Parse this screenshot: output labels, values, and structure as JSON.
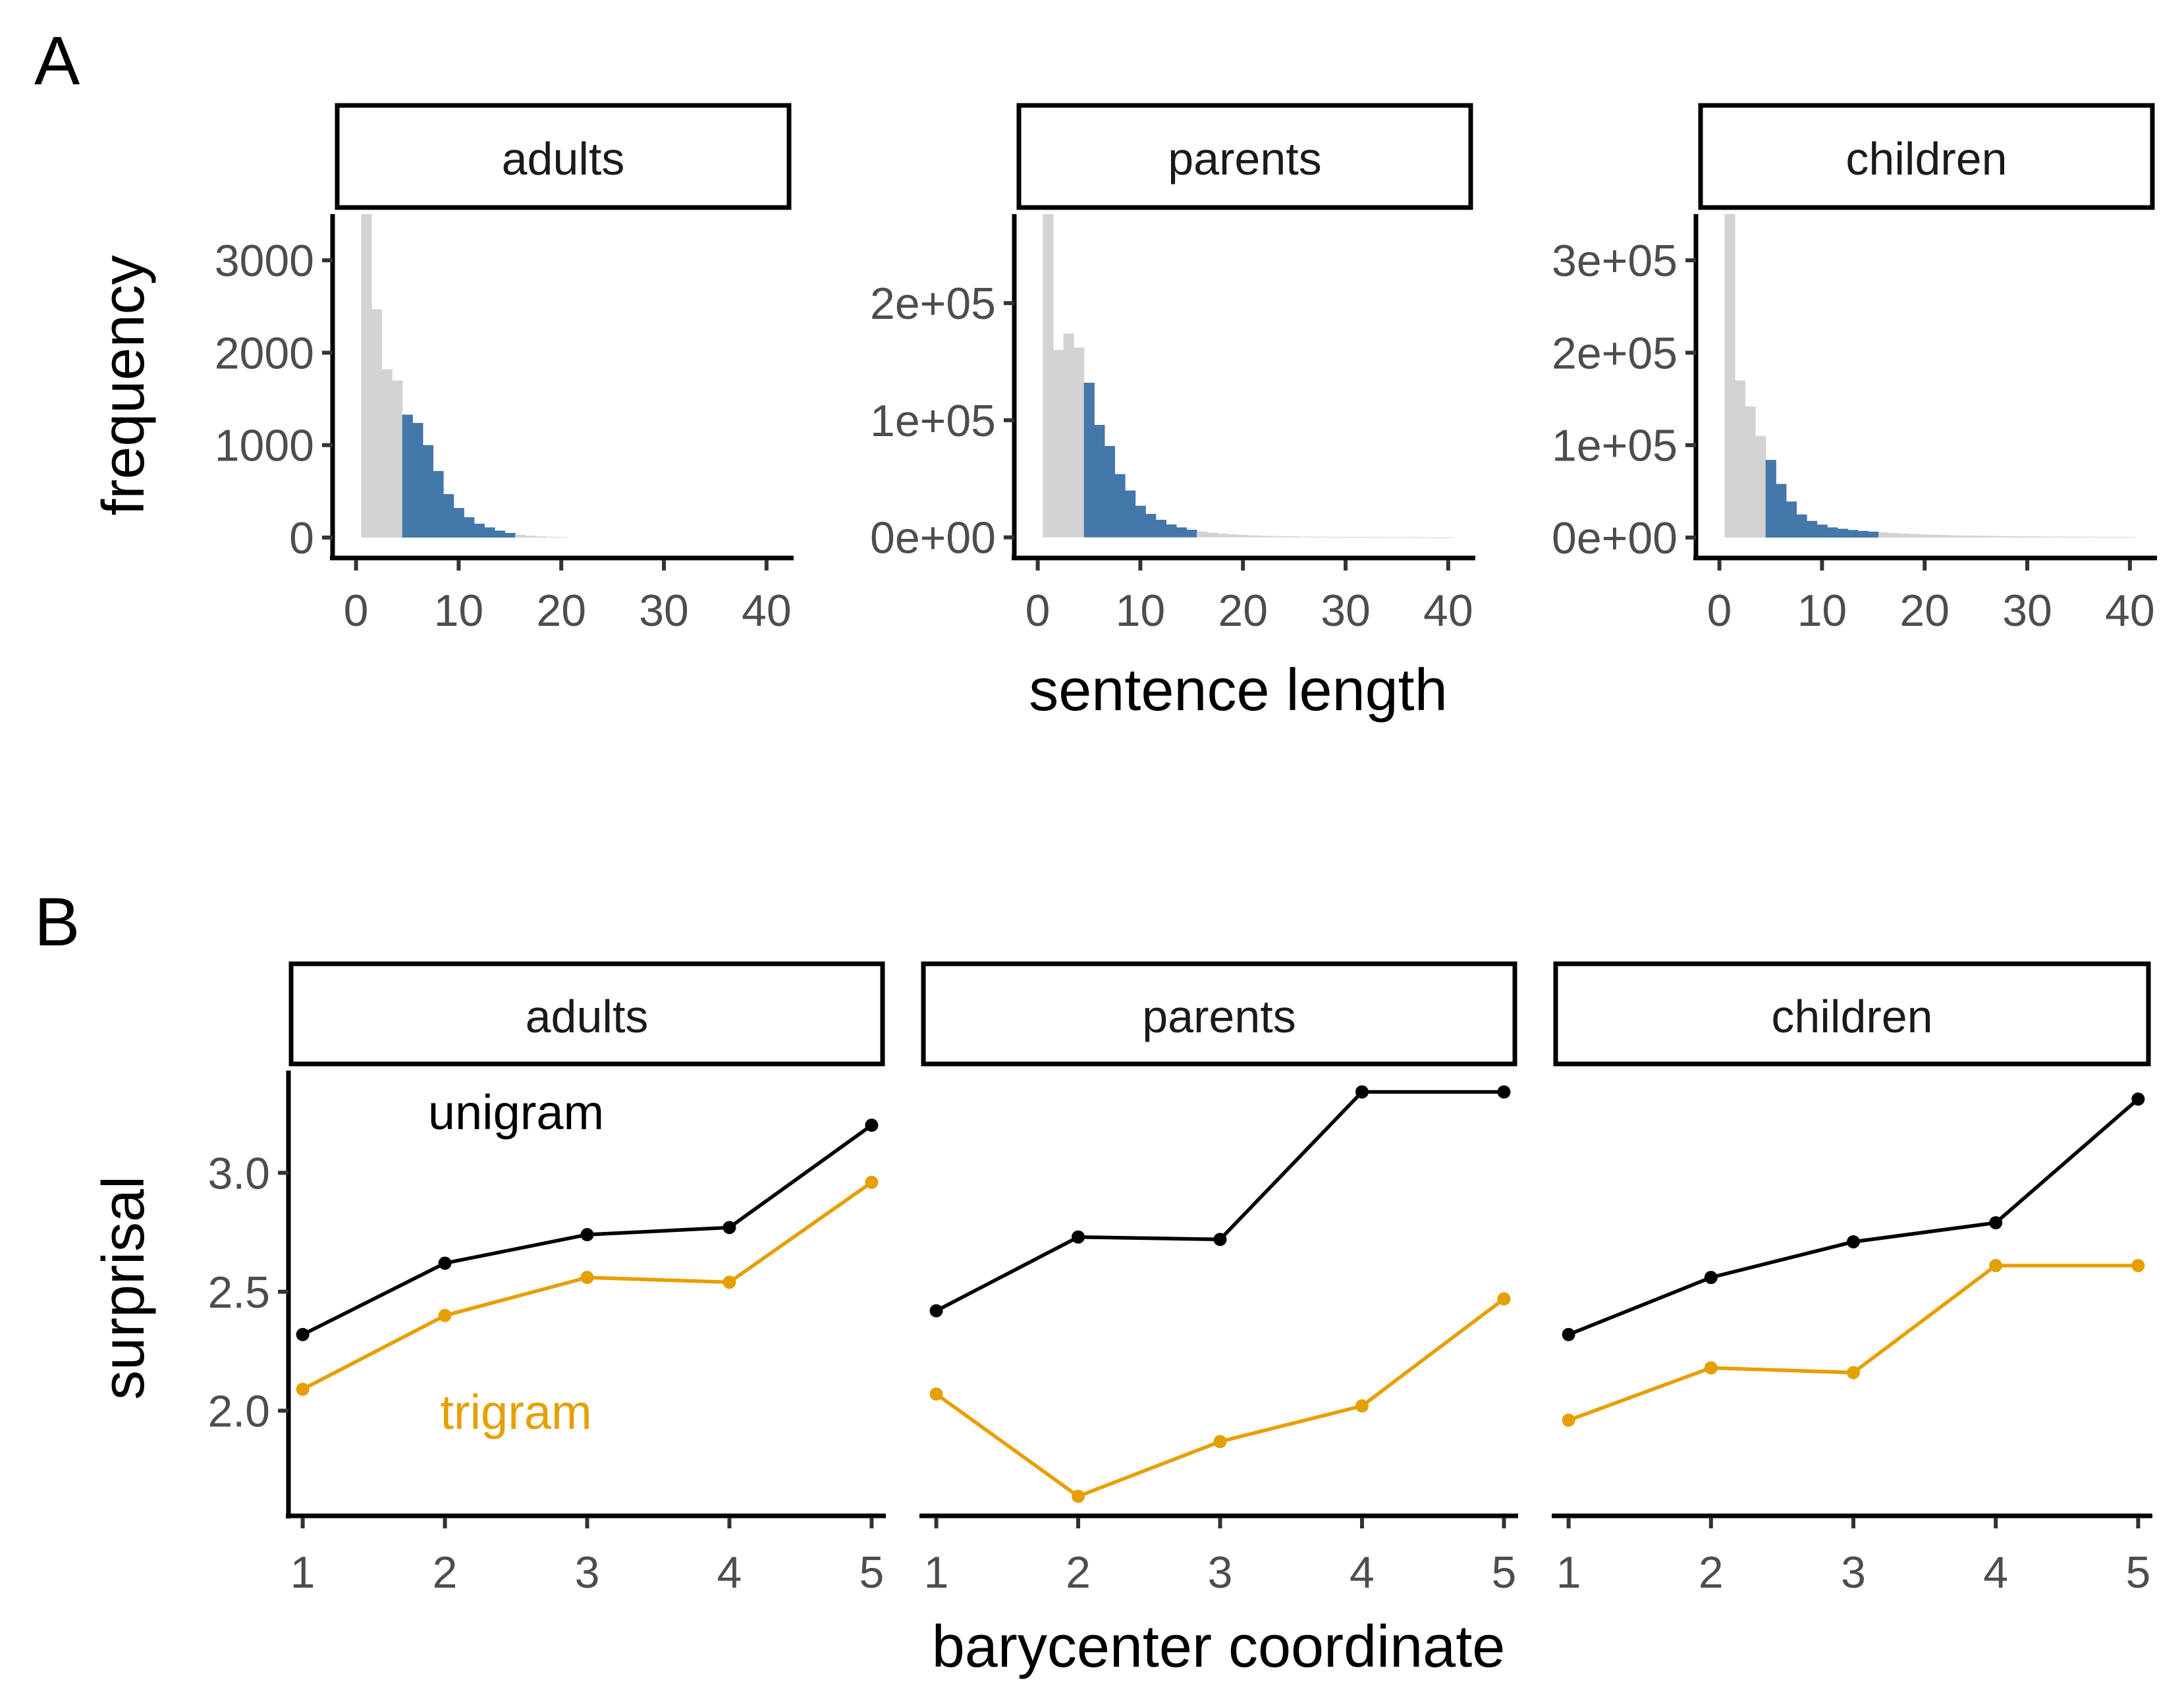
{
  "panel_labels": {
    "a": "A",
    "b": "B"
  },
  "colors": {
    "highlight": "#4477aa",
    "base": "#d3d3d3",
    "unigram": "#000000",
    "trigram": "#e69f00"
  },
  "chart_data": [
    {
      "type": "bar",
      "panel": "A",
      "xlabel": "sentence length",
      "ylabel": "frequency",
      "xlim": [
        -1,
        42
      ],
      "xticks": [
        0,
        10,
        20,
        30,
        40
      ],
      "xtick_labels": [
        "0",
        "10",
        "20",
        "30",
        "40"
      ],
      "highlight_range": [
        5,
        15
      ],
      "facets": [
        {
          "name": "adults",
          "ylim": [
            -150,
            3500
          ],
          "yticks": [
            0,
            1000,
            2000,
            3000
          ],
          "ytick_labels": [
            "0",
            "1000",
            "2000",
            "3000"
          ],
          "x": [
            1,
            2,
            3,
            4,
            5,
            6,
            7,
            8,
            9,
            10,
            11,
            12,
            13,
            14,
            15,
            16,
            17,
            18,
            19,
            20
          ],
          "values": [
            3500,
            2470,
            1820,
            1700,
            1330,
            1240,
            1000,
            720,
            470,
            320,
            220,
            150,
            110,
            75,
            50,
            30,
            20,
            12,
            8,
            5
          ]
        },
        {
          "name": "parents",
          "ylim": [
            -12000,
            276000
          ],
          "yticks": [
            0,
            100000,
            200000
          ],
          "ytick_labels": [
            "0e+00",
            "1e+05",
            "2e+05"
          ],
          "x": [
            1,
            2,
            3,
            4,
            5,
            6,
            7,
            8,
            9,
            10,
            11,
            12,
            13,
            14,
            15,
            16,
            17,
            18,
            19,
            20,
            21,
            22,
            23,
            24,
            25,
            26,
            27,
            28,
            29,
            30,
            31,
            32,
            33,
            34,
            35,
            36,
            37,
            38,
            39,
            40
          ],
          "values": [
            276000,
            160000,
            174000,
            162000,
            132000,
            96000,
            78000,
            54000,
            40000,
            27000,
            20000,
            15000,
            11000,
            8500,
            6500,
            5000,
            4000,
            3200,
            2600,
            2100,
            1700,
            1400,
            1150,
            950,
            800,
            650,
            540,
            450,
            380,
            320,
            270,
            230,
            190,
            160,
            140,
            120,
            100,
            85,
            70,
            60
          ]
        },
        {
          "name": "children",
          "ylim": [
            -15000,
            350000
          ],
          "yticks": [
            0,
            100000,
            200000,
            300000
          ],
          "ytick_labels": [
            "0e+00",
            "1e+05",
            "2e+05",
            "3e+05"
          ],
          "x": [
            1,
            2,
            3,
            4,
            5,
            6,
            7,
            8,
            9,
            10,
            11,
            12,
            13,
            14,
            15,
            16,
            17,
            18,
            19,
            20,
            21,
            22,
            23,
            24,
            25,
            26,
            27,
            28,
            29,
            30,
            31,
            32,
            33,
            34,
            35,
            36,
            37,
            38,
            39,
            40
          ],
          "values": [
            350000,
            170000,
            142000,
            110000,
            84000,
            58000,
            39000,
            25000,
            18000,
            14000,
            11000,
            9500,
            8200,
            7200,
            6400,
            5600,
            4900,
            4300,
            3800,
            3400,
            3000,
            2700,
            2400,
            2200,
            2000,
            1800,
            1650,
            1500,
            1380,
            1260,
            1160,
            1070,
            990,
            920,
            860,
            800,
            750,
            700,
            660,
            620
          ]
        }
      ]
    },
    {
      "type": "line",
      "panel": "B",
      "xlabel": "barycenter coordinate",
      "ylabel": "surprisal",
      "xlim": [
        0.9,
        5.1
      ],
      "ylim": [
        1.58,
        3.43
      ],
      "xticks": [
        1,
        2,
        3,
        4,
        5
      ],
      "xtick_labels": [
        "1",
        "2",
        "3",
        "4",
        "5"
      ],
      "yticks": [
        2.0,
        2.5,
        3.0
      ],
      "ytick_labels": [
        "2.0",
        "2.5",
        "3.0"
      ],
      "facets": [
        {
          "name": "adults",
          "x": [
            1,
            2,
            3,
            4,
            5
          ],
          "series": [
            {
              "name": "unigram",
              "values": [
                2.32,
                2.62,
                2.74,
                2.77,
                3.2
              ]
            },
            {
              "name": "trigram",
              "values": [
                2.09,
                2.4,
                2.56,
                2.54,
                2.96
              ]
            }
          ]
        },
        {
          "name": "parents",
          "x": [
            1,
            2,
            3,
            4,
            5
          ],
          "series": [
            {
              "name": "unigram",
              "values": [
                2.42,
                2.73,
                2.72,
                3.34,
                3.34
              ]
            },
            {
              "name": "trigram",
              "values": [
                2.07,
                1.64,
                1.87,
                2.02,
                2.47
              ]
            }
          ]
        },
        {
          "name": "children",
          "x": [
            1,
            2,
            3,
            4,
            5
          ],
          "series": [
            {
              "name": "unigram",
              "values": [
                2.32,
                2.56,
                2.71,
                2.79,
                3.31
              ]
            },
            {
              "name": "trigram",
              "values": [
                1.96,
                2.18,
                2.16,
                2.61,
                2.61
              ]
            }
          ]
        }
      ],
      "annotations": [
        {
          "text": "unigram",
          "x": 2.5,
          "y": 3.25,
          "facet": 0,
          "series": 0
        },
        {
          "text": "trigram",
          "x": 2.5,
          "y": 1.99,
          "facet": 0,
          "series": 1
        }
      ]
    }
  ]
}
